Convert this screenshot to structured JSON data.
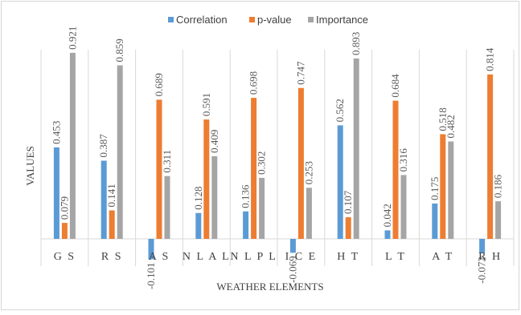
{
  "chart_data": {
    "type": "bar",
    "title": "",
    "xlabel": "WEATHER ELEMENTS",
    "ylabel": "VALUES",
    "categories": [
      "GS",
      "RS",
      "AS",
      "NLAL",
      "NLPL",
      "ICE",
      "HT",
      "LT",
      "AT",
      "RH"
    ],
    "category_display": [
      "G S",
      "R S",
      "A S",
      "N L A L",
      "N L P L",
      "I C E",
      "H T",
      "L T",
      "A T",
      "R H"
    ],
    "series": [
      {
        "name": "Correlation",
        "color": "#5b9bd5",
        "values": [
          0.453,
          0.387,
          -0.101,
          0.128,
          0.136,
          -0.069,
          0.562,
          0.042,
          0.175,
          -0.072
        ],
        "labels": [
          "0.453",
          "0.387",
          "-0.101",
          "0.128",
          "0.136",
          "-0.069",
          "0.562",
          "0.042",
          "0.175",
          "-0.072"
        ]
      },
      {
        "name": "p-value",
        "color": "#ed7d31",
        "values": [
          0.079,
          0.141,
          0.689,
          0.591,
          0.698,
          0.747,
          0.107,
          0.684,
          0.518,
          0.814
        ],
        "labels": [
          "0.079",
          "0.141",
          "0.689",
          "0.591",
          "0.698",
          "0.747",
          "0.107",
          "0.684",
          "0.518",
          "0.814"
        ]
      },
      {
        "name": "Importance",
        "color": "#a5a5a5",
        "values": [
          0.921,
          0.859,
          0.311,
          0.409,
          0.302,
          0.253,
          0.893,
          0.316,
          0.482,
          0.186
        ],
        "labels": [
          "0.921",
          "0.859",
          "0.311",
          "0.409",
          "0.302",
          "0.253",
          "0.893",
          "0.316",
          "0.482",
          "0.186"
        ]
      }
    ],
    "ylim": [
      -0.12,
      1.0
    ],
    "grid": "vertical category separators",
    "legend": "top"
  }
}
